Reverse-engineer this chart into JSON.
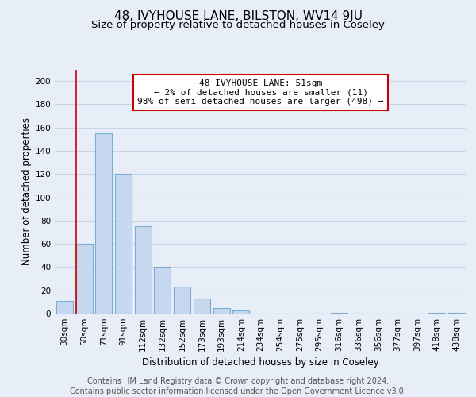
{
  "title": "48, IVYHOUSE LANE, BILSTON, WV14 9JU",
  "subtitle": "Size of property relative to detached houses in Coseley",
  "xlabel": "Distribution of detached houses by size in Coseley",
  "ylabel": "Number of detached properties",
  "bar_labels": [
    "30sqm",
    "50sqm",
    "71sqm",
    "91sqm",
    "112sqm",
    "132sqm",
    "152sqm",
    "173sqm",
    "193sqm",
    "214sqm",
    "234sqm",
    "254sqm",
    "275sqm",
    "295sqm",
    "316sqm",
    "336sqm",
    "356sqm",
    "377sqm",
    "397sqm",
    "418sqm",
    "438sqm"
  ],
  "bar_values": [
    11,
    60,
    155,
    120,
    75,
    40,
    23,
    13,
    5,
    3,
    0,
    0,
    0,
    0,
    1,
    0,
    0,
    0,
    0,
    1,
    1
  ],
  "bar_color": "#c5d8f0",
  "bar_edge_color": "#7aadd4",
  "annotation_line_color": "#cc0000",
  "annotation_box_text": "48 IVYHOUSE LANE: 51sqm\n← 2% of detached houses are smaller (11)\n98% of semi-detached houses are larger (498) →",
  "ylim": [
    0,
    210
  ],
  "yticks": [
    0,
    20,
    40,
    60,
    80,
    100,
    120,
    140,
    160,
    180,
    200
  ],
  "footer_line1": "Contains HM Land Registry data © Crown copyright and database right 2024.",
  "footer_line2": "Contains public sector information licensed under the Open Government Licence v3.0.",
  "background_color": "#e8eef8",
  "plot_background_color": "#e8eef8",
  "grid_color": "#c8d4e8",
  "title_fontsize": 11,
  "subtitle_fontsize": 9.5,
  "axis_label_fontsize": 8.5,
  "tick_fontsize": 7.5,
  "annotation_fontsize": 8,
  "footer_fontsize": 7
}
